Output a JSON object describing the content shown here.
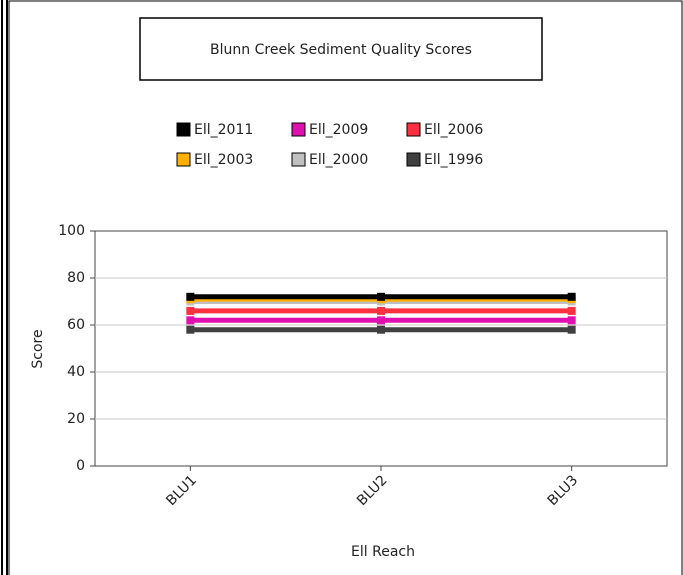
{
  "chart_data": {
    "type": "line",
    "title": "Blunn Creek Sediment Quality Scores",
    "x_label": "Ell Reach",
    "y_label": "Score",
    "categories": [
      "BLU1",
      "BLU2",
      "BLU3"
    ],
    "series": [
      {
        "name": "Ell_2011",
        "color": "#000000",
        "values": [
          72,
          72,
          72
        ]
      },
      {
        "name": "Ell_2009",
        "color": "#e010b0",
        "values": [
          62,
          62,
          62
        ]
      },
      {
        "name": "Ell_2006",
        "color": "#ff3040",
        "values": [
          66,
          66,
          66
        ]
      },
      {
        "name": "Ell_2003",
        "color": "#ffb000",
        "values": [
          71,
          71,
          71
        ]
      },
      {
        "name": "Ell_2000",
        "color": "#c0c0c0",
        "values": [
          70,
          70,
          70
        ]
      },
      {
        "name": "Ell_1996",
        "color": "#404040",
        "values": [
          58,
          58,
          58
        ]
      }
    ],
    "ylim": [
      0,
      100
    ],
    "yticks": [
      0,
      20,
      40,
      60,
      80,
      100
    ],
    "grid": true
  }
}
